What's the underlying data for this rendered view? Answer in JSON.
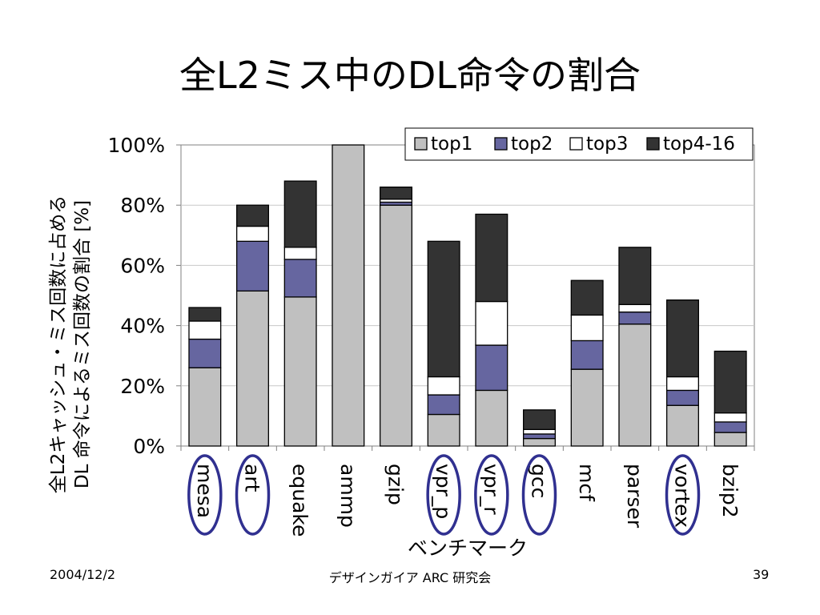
{
  "slide": {
    "title": "全L2ミス中のDL命令の割合",
    "footer_date": "2004/12/2",
    "footer_org": "デザインガイア ARC 研究会",
    "page_number": "39"
  },
  "chart_data": {
    "type": "bar",
    "stacked": true,
    "percent_axis": true,
    "ylim": [
      0,
      100
    ],
    "yticks": [
      "0%",
      "20%",
      "40%",
      "60%",
      "80%",
      "100%"
    ],
    "ylabel_lines": [
      "全L2キャッシュ・ミス回数に占める",
      "DL 命令によるミス回数の割合 [%]"
    ],
    "xlabel": "ベンチマーク",
    "categories": [
      "mesa",
      "art",
      "equake",
      "ammp",
      "gzip",
      "vpr_p",
      "vpr_r",
      "gcc",
      "mcf",
      "parser",
      "vortex",
      "bzip2"
    ],
    "circled_categories": [
      "mesa",
      "art",
      "vpr_p",
      "vpr_r",
      "gcc",
      "vortex"
    ],
    "legend_position": "top-right",
    "grid": true,
    "series": [
      {
        "name": "top1",
        "color": "#c0c0c0",
        "values": [
          26,
          51.5,
          49.5,
          100,
          80,
          10.5,
          18.5,
          2.5,
          25.5,
          40.5,
          13.5,
          4.5
        ]
      },
      {
        "name": "top2",
        "color": "#6666a0",
        "values": [
          9.5,
          16.5,
          12.5,
          0,
          1,
          6.5,
          15,
          1.5,
          9.5,
          4,
          5,
          3.5
        ]
      },
      {
        "name": "top3",
        "color": "#ffffff",
        "values": [
          6,
          5,
          4,
          0,
          1,
          6,
          14.5,
          1.5,
          8.5,
          2.5,
          4.5,
          3
        ]
      },
      {
        "name": "top4-16",
        "color": "#333333",
        "values": [
          4.5,
          7,
          22,
          0,
          4,
          45,
          29,
          6.5,
          11.5,
          19,
          25.5,
          20.5
        ]
      }
    ]
  }
}
